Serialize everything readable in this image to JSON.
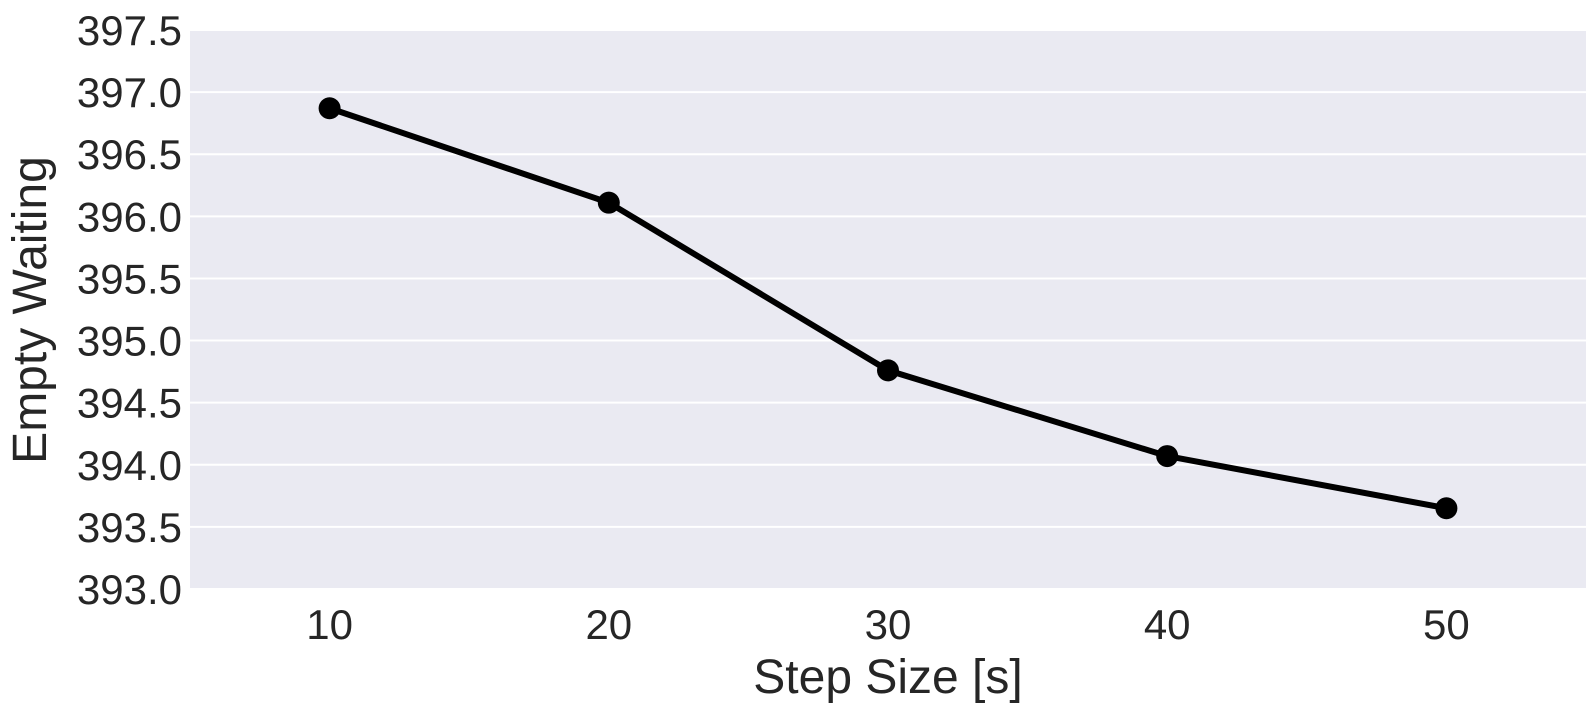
{
  "chart_data": {
    "type": "line",
    "title": "",
    "xlabel": "Step Size [s]",
    "ylabel": "Empty Waiting",
    "x": [
      10,
      20,
      30,
      40,
      50
    ],
    "xticks": [
      "10",
      "20",
      "30",
      "40",
      "50"
    ],
    "xlim": [
      5,
      55
    ],
    "ylim": [
      393.0,
      397.5
    ],
    "yticks": [
      "393.0",
      "393.5",
      "394.0",
      "394.5",
      "395.0",
      "395.5",
      "396.0",
      "396.5",
      "397.0",
      "397.5"
    ],
    "series": [
      {
        "values": [
          396.87,
          396.11,
          394.76,
          394.07,
          393.65
        ],
        "color": "#000000"
      }
    ],
    "grid": true,
    "legend": "none",
    "plot_background": "#eaeaf2",
    "grid_color": "#ffffff"
  }
}
